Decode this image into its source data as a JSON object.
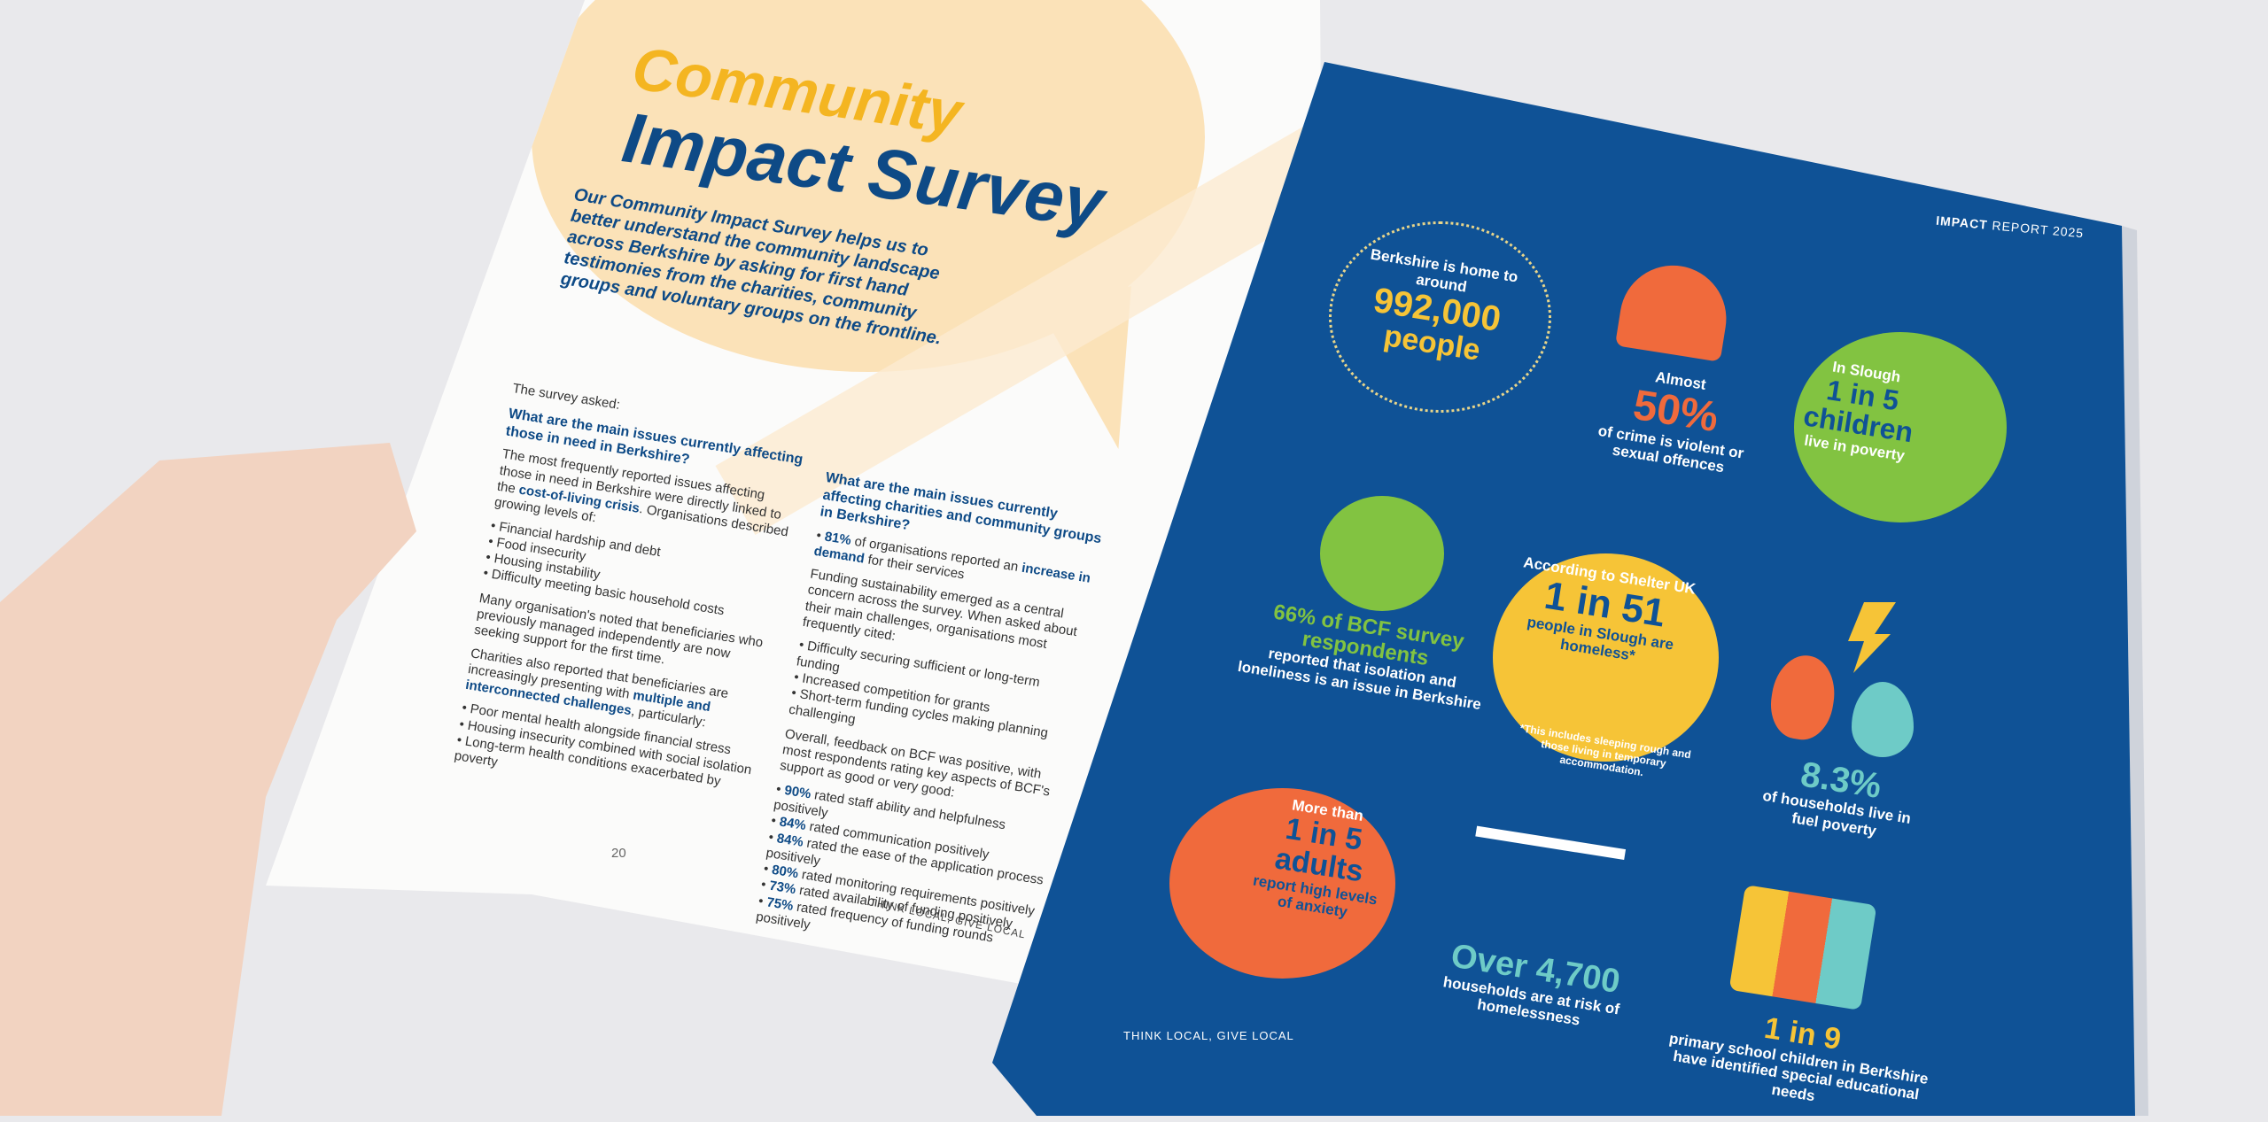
{
  "left_page": {
    "title_line1": "Community",
    "title_line2": "Impact Survey",
    "intro": "Our Community Impact Survey helps us to better understand the community landscape across Berkshire by asking for first hand testimonies from the charities, community groups and voluntary groups on the frontline.",
    "survey_asked": "The survey asked:",
    "q1": "What are the main issues currently affecting those in need in Berkshire?",
    "q1_para_a": "The most frequently reported issues affecting those in need in Berkshire were directly linked to the",
    "q1_para_hl": "cost-of-living crisis",
    "q1_para_b": ". Organisations described growing levels of:",
    "q1_list": [
      "Financial hardship and debt",
      "Food insecurity",
      "Housing instability",
      "Difficulty meeting basic household costs"
    ],
    "q1_para2": "Many organisation's noted that beneficiaries who previously managed independently are now seeking support for the first time.",
    "q1_para3_a": "Charities also reported that beneficiaries are increasingly presenting with",
    "q1_para3_hl": "multiple and interconnected challenges",
    "q1_para3_b": ", particularly:",
    "q1_list2": [
      "Poor mental health alongside financial stress",
      "Housing insecurity combined with social isolation",
      "Long-term health conditions exacerbated by poverty"
    ],
    "q2": "What are the main issues currently affecting charities and community groups in Berkshire?",
    "q2_stat": "81%",
    "q2_stat_text_a": "of organisations reported an",
    "q2_stat_hl": "increase in demand",
    "q2_stat_text_b": "for their services",
    "q2_para": "Funding sustainability emerged as a central concern across the survey. When asked about their main challenges, organisations most frequently cited:",
    "q2_list": [
      "Difficulty securing sufficient or long-term funding",
      "Increased competition for grants",
      "Short-term funding cycles making planning challenging"
    ],
    "q2_para2": "Overall, feedback on BCF was positive, with most respondents rating key aspects of BCF's support as good or very good:",
    "q2_ratings": [
      {
        "pct": "90%",
        "text": "rated staff ability and helpfulness positively"
      },
      {
        "pct": "84%",
        "text": "rated communication positively"
      },
      {
        "pct": "84%",
        "text": "rated the ease of the application process positively"
      },
      {
        "pct": "80%",
        "text": "rated monitoring requirements positively"
      },
      {
        "pct": "73%",
        "text": "rated availability of funding positively"
      },
      {
        "pct": "75%",
        "text": "rated frequency of funding rounds positively"
      }
    ],
    "page_number": "20",
    "footer": "THINK LOCAL, GIVE LOCAL"
  },
  "right_page": {
    "header_bold": "IMPACT",
    "header_rest": "REPORT 2025",
    "footer": "THINK LOCAL, GIVE LOCAL",
    "stats": {
      "population": {
        "pre": "Berkshire is home to around",
        "big": "992,000",
        "post": "people"
      },
      "crime": {
        "pre": "Almost",
        "big": "50%",
        "post": "of crime is violent or sexual offences"
      },
      "slough_children": {
        "pre": "In Slough",
        "big": "1 in 5 children",
        "post": "live in poverty"
      },
      "isolation": {
        "big": "66% of BCF survey respondents",
        "post": "reported that isolation and loneliness is an issue in Berkshire"
      },
      "homeless": {
        "pre": "According to Shelter UK",
        "big": "1 in 51",
        "post": "people in Slough are homeless*",
        "note": "*This includes sleeping rough and those living in temporary accommodation."
      },
      "fuel": {
        "big": "8.3%",
        "post": "of households live in fuel poverty"
      },
      "anxiety": {
        "pre": "More than",
        "big": "1 in 5 adults",
        "post": "report high levels of anxiety"
      },
      "homelessness_risk": {
        "big": "Over 4,700",
        "post": "households are at risk of homelessness"
      },
      "send": {
        "big": "1 in 9",
        "post": "primary school children in Berkshire have identified special educational needs"
      }
    }
  },
  "colors": {
    "navy": "#0f5296",
    "title_yellow": "#f4b521",
    "bubble": "#fbe2b8",
    "accent_yellow": "#f6c437",
    "accent_orange": "#f06a3c",
    "accent_green": "#82c341",
    "accent_teal": "#6ecbc7"
  }
}
